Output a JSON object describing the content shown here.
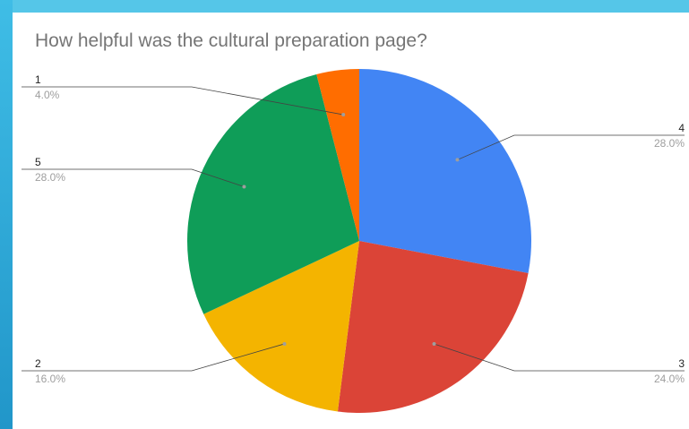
{
  "chart_data": {
    "type": "pie",
    "title": "How helpful was the cultural preparation page?",
    "slices": [
      {
        "label": "4",
        "value": 28.0,
        "percent_label": "28.0%",
        "color": "#4285f4"
      },
      {
        "label": "3",
        "value": 24.0,
        "percent_label": "24.0%",
        "color": "#db4437"
      },
      {
        "label": "2",
        "value": 16.0,
        "percent_label": "16.0%",
        "color": "#f4b400"
      },
      {
        "label": "5",
        "value": 28.0,
        "percent_label": "28.0%",
        "color": "#0f9d58"
      },
      {
        "label": "1",
        "value": 4.0,
        "percent_label": "4.0%",
        "color": "#ff6d00"
      }
    ],
    "legend": "none"
  }
}
